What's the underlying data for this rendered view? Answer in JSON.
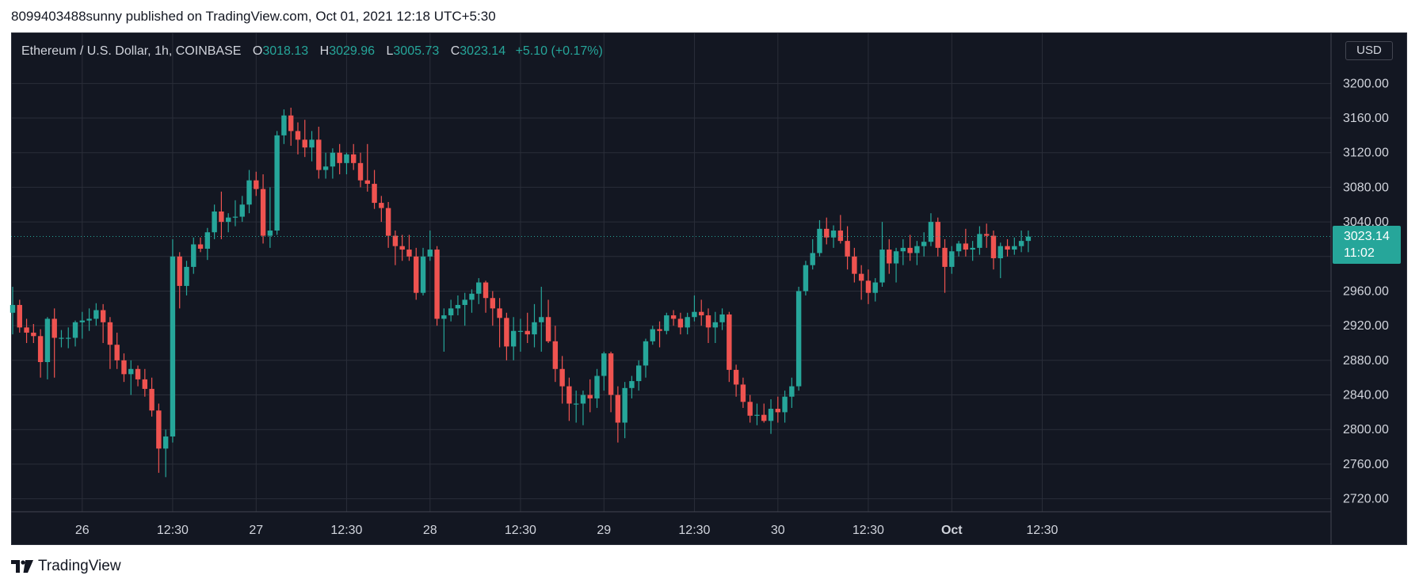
{
  "header": {
    "published_text": "8099403488sunny published on TradingView.com, Oct 01, 2021 12:18 UTC+5:30"
  },
  "legend": {
    "symbol": "Ethereum / U.S. Dollar, 1h, COINBASE",
    "open_label": "O",
    "open": "3018.13",
    "high_label": "H",
    "high": "3029.96",
    "low_label": "L",
    "low": "3005.73",
    "close_label": "C",
    "close": "3023.14",
    "change": "+5.10 (+0.17%)"
  },
  "currency_button": {
    "label": "USD"
  },
  "price_badge": {
    "price": "3023.14",
    "countdown": "11:02"
  },
  "brand": {
    "name": "TradingView"
  },
  "colors": {
    "up": "#26a69a",
    "down": "#ef5350",
    "background": "#131722",
    "grid": "#2a2e39",
    "axis_text": "#d1d4dc"
  },
  "chart_data": {
    "type": "candlestick",
    "title": "Ethereum / U.S. Dollar, 1h, COINBASE",
    "y_ticks": [
      2720,
      2760,
      2800,
      2840,
      2880,
      2920,
      2960,
      3000,
      3040,
      3080,
      3120,
      3160,
      3200
    ],
    "y_tick_labels": [
      "2720.00",
      "2760.00",
      "2800.00",
      "2840.00",
      "2880.00",
      "2920.00",
      "2960.00",
      "3000.00",
      "3040.00",
      "3080.00",
      "3120.00",
      "3160.00",
      "3200.00"
    ],
    "ylim": [
      2705,
      3258
    ],
    "x_ticks": [
      {
        "label": "26",
        "bar": 10
      },
      {
        "label": "12:30",
        "bar": 23
      },
      {
        "label": "27",
        "bar": 35
      },
      {
        "label": "12:30",
        "bar": 48
      },
      {
        "label": "28",
        "bar": 60
      },
      {
        "label": "12:30",
        "bar": 73
      },
      {
        "label": "29",
        "bar": 85
      },
      {
        "label": "12:30",
        "bar": 98
      },
      {
        "label": "30",
        "bar": 110
      },
      {
        "label": "12:30",
        "bar": 123
      },
      {
        "label": "Oct",
        "bar": 135
      },
      {
        "label": "12:30",
        "bar": 148
      }
    ],
    "last_price": 3023.14,
    "ohlc": [
      [
        2935,
        2965,
        2910,
        2944
      ],
      [
        2944,
        2950,
        2912,
        2918
      ],
      [
        2918,
        2928,
        2900,
        2912
      ],
      [
        2912,
        2922,
        2900,
        2908
      ],
      [
        2908,
        2916,
        2860,
        2878
      ],
      [
        2878,
        2930,
        2858,
        2928
      ],
      [
        2928,
        2940,
        2860,
        2906
      ],
      [
        2906,
        2915,
        2895,
        2906
      ],
      [
        2906,
        2918,
        2894,
        2906
      ],
      [
        2906,
        2926,
        2896,
        2924
      ],
      [
        2924,
        2936,
        2905,
        2926
      ],
      [
        2926,
        2940,
        2914,
        2928
      ],
      [
        2928,
        2946,
        2920,
        2938
      ],
      [
        2938,
        2945,
        2900,
        2924
      ],
      [
        2924,
        2930,
        2870,
        2898
      ],
      [
        2898,
        2912,
        2870,
        2880
      ],
      [
        2880,
        2888,
        2855,
        2864
      ],
      [
        2864,
        2880,
        2840,
        2870
      ],
      [
        2870,
        2874,
        2850,
        2858
      ],
      [
        2858,
        2870,
        2838,
        2847
      ],
      [
        2847,
        2860,
        2815,
        2822
      ],
      [
        2822,
        2830,
        2750,
        2778
      ],
      [
        2778,
        2800,
        2745,
        2792
      ],
      [
        2792,
        3020,
        2785,
        3000
      ],
      [
        3000,
        3005,
        2940,
        2966
      ],
      [
        2966,
        2995,
        2955,
        2988
      ],
      [
        2988,
        3022,
        2980,
        3014
      ],
      [
        3014,
        3022,
        3005,
        3009
      ],
      [
        3009,
        3033,
        2996,
        3028
      ],
      [
        3028,
        3060,
        3020,
        3052
      ],
      [
        3052,
        3075,
        3020,
        3040
      ],
      [
        3040,
        3050,
        3028,
        3045
      ],
      [
        3045,
        3065,
        3035,
        3046
      ],
      [
        3046,
        3070,
        3040,
        3060
      ],
      [
        3060,
        3100,
        3050,
        3088
      ],
      [
        3088,
        3098,
        3070,
        3078
      ],
      [
        3078,
        3095,
        3015,
        3024
      ],
      [
        3024,
        3080,
        3010,
        3030
      ],
      [
        3030,
        3145,
        3025,
        3140
      ],
      [
        3140,
        3170,
        3130,
        3163
      ],
      [
        3163,
        3172,
        3128,
        3145
      ],
      [
        3145,
        3155,
        3118,
        3135
      ],
      [
        3135,
        3158,
        3115,
        3126
      ],
      [
        3126,
        3145,
        3110,
        3135
      ],
      [
        3135,
        3150,
        3090,
        3100
      ],
      [
        3100,
        3120,
        3090,
        3104
      ],
      [
        3104,
        3125,
        3090,
        3120
      ],
      [
        3120,
        3130,
        3095,
        3108
      ],
      [
        3108,
        3120,
        3095,
        3118
      ],
      [
        3118,
        3130,
        3100,
        3108
      ],
      [
        3108,
        3120,
        3080,
        3088
      ],
      [
        3088,
        3130,
        3075,
        3084
      ],
      [
        3084,
        3100,
        3055,
        3062
      ],
      [
        3062,
        3070,
        3040,
        3056
      ],
      [
        3056,
        3063,
        3010,
        3024
      ],
      [
        3024,
        3030,
        2990,
        3012
      ],
      [
        3012,
        3025,
        2995,
        3008
      ],
      [
        3008,
        3025,
        2995,
        3000
      ],
      [
        3000,
        3010,
        2950,
        2958
      ],
      [
        2958,
        3010,
        2955,
        3000
      ],
      [
        3000,
        3030,
        2995,
        3008
      ],
      [
        3008,
        3012,
        2920,
        2928
      ],
      [
        2928,
        2940,
        2890,
        2932
      ],
      [
        2932,
        2950,
        2925,
        2940
      ],
      [
        2940,
        2955,
        2932,
        2944
      ],
      [
        2944,
        2958,
        2920,
        2950
      ],
      [
        2950,
        2962,
        2935,
        2957
      ],
      [
        2957,
        2975,
        2945,
        2970
      ],
      [
        2970,
        2972,
        2935,
        2952
      ],
      [
        2952,
        2960,
        2920,
        2940
      ],
      [
        2940,
        2952,
        2895,
        2929
      ],
      [
        2929,
        2935,
        2880,
        2896
      ],
      [
        2896,
        2930,
        2880,
        2914
      ],
      [
        2914,
        2928,
        2890,
        2914
      ],
      [
        2914,
        2935,
        2900,
        2910
      ],
      [
        2910,
        2945,
        2895,
        2924
      ],
      [
        2924,
        2965,
        2890,
        2930
      ],
      [
        2930,
        2950,
        2900,
        2902
      ],
      [
        2902,
        2920,
        2855,
        2870
      ],
      [
        2870,
        2885,
        2830,
        2850
      ],
      [
        2850,
        2860,
        2810,
        2830
      ],
      [
        2830,
        2845,
        2808,
        2830
      ],
      [
        2830,
        2845,
        2805,
        2840
      ],
      [
        2840,
        2858,
        2820,
        2836
      ],
      [
        2836,
        2870,
        2825,
        2862
      ],
      [
        2862,
        2890,
        2845,
        2888
      ],
      [
        2888,
        2890,
        2820,
        2840
      ],
      [
        2840,
        2850,
        2785,
        2808
      ],
      [
        2808,
        2855,
        2790,
        2848
      ],
      [
        2848,
        2862,
        2836,
        2856
      ],
      [
        2856,
        2880,
        2845,
        2874
      ],
      [
        2874,
        2905,
        2860,
        2902
      ],
      [
        2902,
        2920,
        2898,
        2916
      ],
      [
        2916,
        2925,
        2895,
        2914
      ],
      [
        2914,
        2935,
        2910,
        2932
      ],
      [
        2932,
        2938,
        2920,
        2928
      ],
      [
        2928,
        2935,
        2910,
        2918
      ],
      [
        2918,
        2935,
        2910,
        2930
      ],
      [
        2930,
        2955,
        2925,
        2936
      ],
      [
        2936,
        2950,
        2920,
        2932
      ],
      [
        2932,
        2940,
        2900,
        2918
      ],
      [
        2918,
        2936,
        2900,
        2924
      ],
      [
        2924,
        2940,
        2915,
        2933
      ],
      [
        2933,
        2936,
        2855,
        2869
      ],
      [
        2869,
        2875,
        2838,
        2852
      ],
      [
        2852,
        2860,
        2825,
        2832
      ],
      [
        2832,
        2840,
        2808,
        2816
      ],
      [
        2816,
        2830,
        2805,
        2817
      ],
      [
        2817,
        2830,
        2808,
        2810
      ],
      [
        2810,
        2835,
        2795,
        2824
      ],
      [
        2824,
        2838,
        2808,
        2820
      ],
      [
        2820,
        2845,
        2808,
        2838
      ],
      [
        2838,
        2860,
        2825,
        2850
      ],
      [
        2850,
        2965,
        2845,
        2960
      ],
      [
        2960,
        2995,
        2955,
        2990
      ],
      [
        2990,
        3020,
        2985,
        3004
      ],
      [
        3004,
        3042,
        3000,
        3032
      ],
      [
        3032,
        3045,
        3014,
        3022
      ],
      [
        3022,
        3036,
        3010,
        3030
      ],
      [
        3030,
        3048,
        3015,
        3018
      ],
      [
        3018,
        3035,
        2985,
        3000
      ],
      [
        3000,
        3010,
        2970,
        2980
      ],
      [
        2980,
        2990,
        2950,
        2972
      ],
      [
        2972,
        2985,
        2945,
        2958
      ],
      [
        2958,
        2975,
        2948,
        2970
      ],
      [
        2970,
        3040,
        2965,
        3008
      ],
      [
        3008,
        3020,
        2980,
        2992
      ],
      [
        2992,
        3010,
        2970,
        3006
      ],
      [
        3006,
        3020,
        2990,
        3010
      ],
      [
        3010,
        3025,
        2995,
        3004
      ],
      [
        3004,
        3018,
        2990,
        3012
      ],
      [
        3012,
        3028,
        3000,
        3017
      ],
      [
        3017,
        3050,
        3012,
        3040
      ],
      [
        3040,
        3045,
        3000,
        3010
      ],
      [
        3010,
        3020,
        2958,
        2988
      ],
      [
        2988,
        3012,
        2980,
        3006
      ],
      [
        3006,
        3018,
        3000,
        3015
      ],
      [
        3015,
        3032,
        3000,
        3008
      ],
      [
        3008,
        3018,
        2995,
        3010
      ],
      [
        3010,
        3035,
        3002,
        3026
      ],
      [
        3026,
        3038,
        3010,
        3024
      ],
      [
        3024,
        3030,
        2985,
        2998
      ],
      [
        2998,
        3016,
        2975,
        3012
      ],
      [
        3012,
        3020,
        3000,
        3008
      ],
      [
        3008,
        3022,
        3002,
        3012
      ],
      [
        3012,
        3030,
        3005,
        3018
      ],
      [
        3018,
        3030,
        3005,
        3023
      ]
    ]
  }
}
